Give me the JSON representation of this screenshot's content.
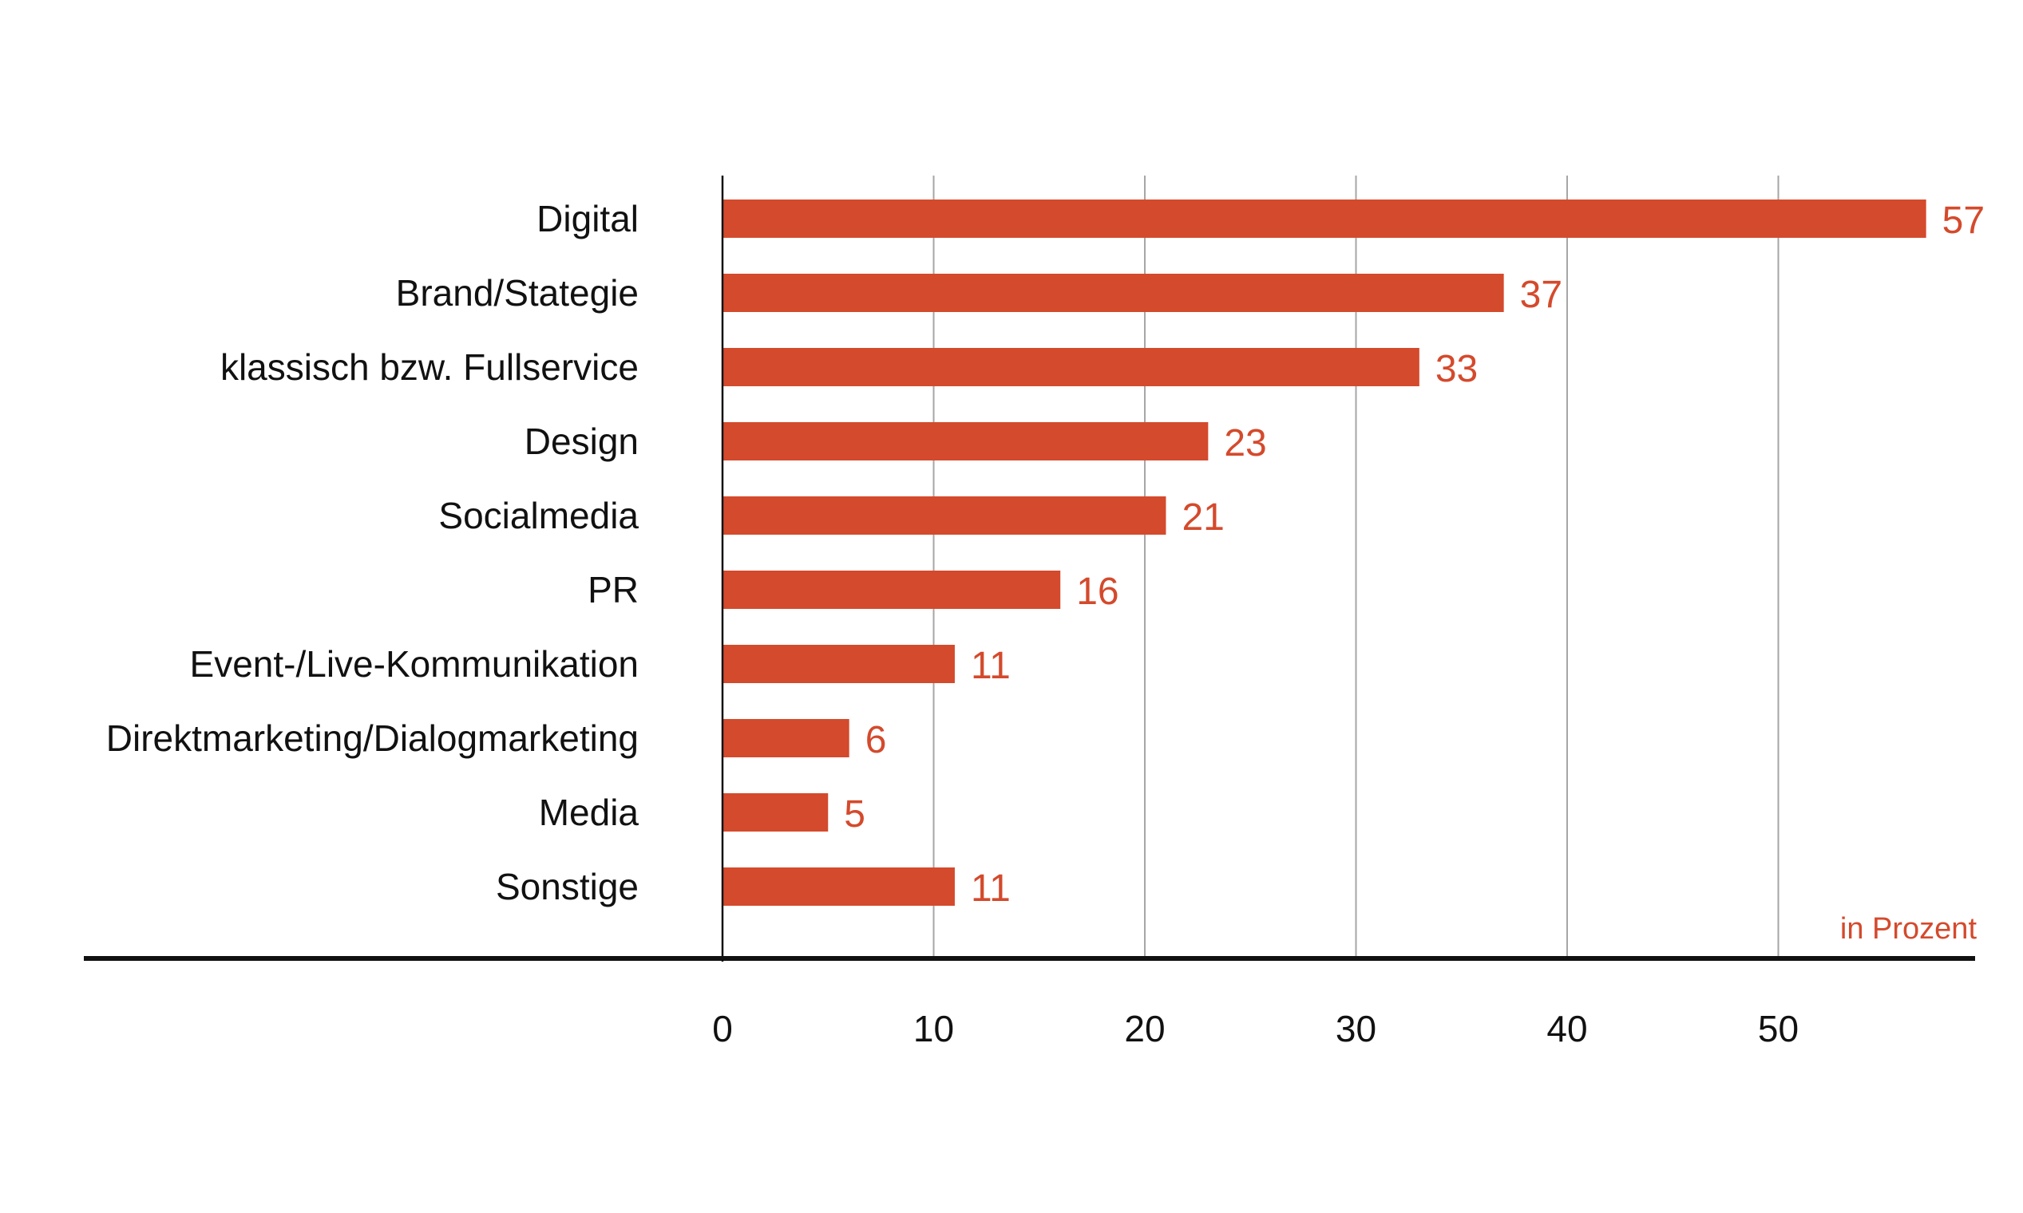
{
  "chart_data": {
    "type": "bar",
    "orientation": "horizontal",
    "categories": [
      "Digital",
      "Brand/Stategie",
      "klassisch bzw. Fullservice",
      "Design",
      "Socialmedia",
      "PR",
      "Event-/Live-Kommunikation",
      "Direktmarketing/Dialogmarketing",
      "Media",
      "Sonstige"
    ],
    "values": [
      57,
      37,
      33,
      23,
      21,
      16,
      11,
      6,
      5,
      11
    ],
    "data_labels": [
      "57",
      "37",
      "33",
      "23",
      "21",
      "16",
      "11",
      "6",
      "5",
      "11"
    ],
    "xlim": [
      0,
      57
    ],
    "xticks": [
      0,
      10,
      20,
      30,
      40,
      50
    ],
    "xtick_labels": [
      "0",
      "10",
      "20",
      "30",
      "40",
      "50"
    ],
    "unit_note": "in Prozent",
    "grid": "vertical",
    "bar_color": "#d44a2c",
    "label_color": "#d44a2c",
    "text_color": "#111111",
    "gridline_color": "#a6a6a6"
  }
}
